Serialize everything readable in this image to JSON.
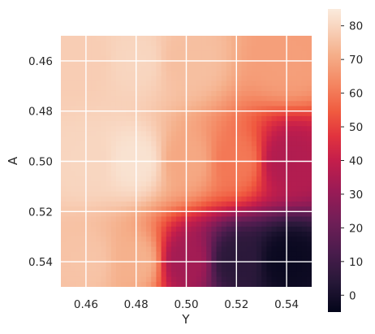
{
  "chart_data": {
    "type": "heatmap",
    "title": "",
    "xlabel": "Y",
    "ylabel": "A",
    "xlim": [
      0.45,
      0.55
    ],
    "ylim": [
      0.45,
      0.55
    ],
    "y_inverted": true,
    "x_ticks": [
      "0.46",
      "0.48",
      "0.50",
      "0.52",
      "0.54"
    ],
    "y_ticks": [
      "0.46",
      "0.48",
      "0.50",
      "0.52",
      "0.54"
    ],
    "colorbar": {
      "min": -5,
      "max": 85,
      "ticks": [
        "0",
        "10",
        "20",
        "30",
        "40",
        "50",
        "60",
        "70",
        "80"
      ],
      "colormap": "rocket"
    },
    "grid": true,
    "grid_color": "#ffffff",
    "background": "#ffffff",
    "grid_resolution": 50,
    "sampled_values": [
      {
        "x": 0.46,
        "y": 0.46,
        "value": 78
      },
      {
        "x": 0.48,
        "y": 0.46,
        "value": 80
      },
      {
        "x": 0.5,
        "y": 0.46,
        "value": 75
      },
      {
        "x": 0.54,
        "y": 0.46,
        "value": 68
      },
      {
        "x": 0.46,
        "y": 0.5,
        "value": 80
      },
      {
        "x": 0.48,
        "y": 0.5,
        "value": 83
      },
      {
        "x": 0.5,
        "y": 0.5,
        "value": 70
      },
      {
        "x": 0.52,
        "y": 0.5,
        "value": 60
      },
      {
        "x": 0.54,
        "y": 0.5,
        "value": 36
      },
      {
        "x": 0.46,
        "y": 0.54,
        "value": 76
      },
      {
        "x": 0.48,
        "y": 0.54,
        "value": 72
      },
      {
        "x": 0.5,
        "y": 0.54,
        "value": 33
      },
      {
        "x": 0.52,
        "y": 0.54,
        "value": 5
      },
      {
        "x": 0.54,
        "y": 0.54,
        "value": -3
      }
    ]
  }
}
